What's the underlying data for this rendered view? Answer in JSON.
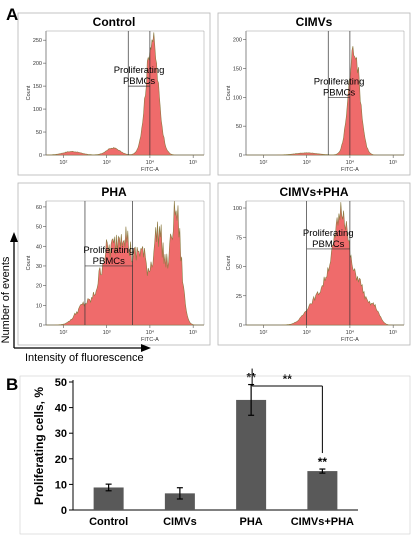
{
  "panel_a": {
    "letter": "A",
    "axis_ylabel": "Number of events",
    "axis_xlabel": "Intensity of fluorescence",
    "fitc_label": "FITC-A",
    "count_label": "Count",
    "gate_label_line1": "Proliferating",
    "gate_label_line2": "PBMCs"
  },
  "panel_b": {
    "letter": "B",
    "significance_mark": "**"
  },
  "colors": {
    "histogram_fill": "#ef6b6b",
    "histogram_edge": "#8b7a40",
    "bar_fill": "#595959",
    "axis": "#000000"
  },
  "chart_data": [
    {
      "type": "area",
      "title": "Control",
      "y_ticks": [
        "0",
        "50",
        "100",
        "150",
        "200",
        "250"
      ],
      "ylim": [
        0,
        270
      ],
      "x_decades": [
        "10²",
        "10³",
        "10⁴",
        "10⁵"
      ],
      "peak_position_log": 4.05,
      "peak_height": 255,
      "gate_decades": [
        3.5,
        4.0
      ],
      "gate_label_level": 150
    },
    {
      "type": "area",
      "title": "CIMVs",
      "y_ticks": [
        "0",
        "50",
        "100",
        "150",
        "200"
      ],
      "ylim": [
        0,
        215
      ],
      "x_decades": [
        "10²",
        "10³",
        "10⁴",
        "10⁵"
      ],
      "peak_position_log": 4.1,
      "peak_height": 185,
      "gate_decades": [
        3.5,
        4.0
      ],
      "gate_label_level": 100
    },
    {
      "type": "area",
      "title": "PHA",
      "y_ticks": [
        "0",
        "10",
        "20",
        "30",
        "40",
        "50",
        "60"
      ],
      "ylim": [
        0,
        63
      ],
      "x_decades": [
        "10²",
        "10³",
        "10⁴",
        "10⁵"
      ],
      "peak_position_log": 4.6,
      "peak_height": 58,
      "gate_decades": [
        2.5,
        3.6
      ],
      "gate_label_level": 30
    },
    {
      "type": "area",
      "title": "CIMVs+PHA",
      "y_ticks": [
        "0",
        "25",
        "50",
        "75",
        "100"
      ],
      "ylim": [
        0,
        106
      ],
      "x_decades": [
        "10²",
        "10³",
        "10⁴",
        "10⁵"
      ],
      "peak_position_log": 3.8,
      "peak_height": 100,
      "gate_decades": [
        3.0,
        4.0
      ],
      "gate_label_level": 65
    },
    {
      "type": "bar",
      "categories": [
        "Control",
        "CIMVs",
        "PHA",
        "CIMVs+PHA"
      ],
      "values": [
        8.8,
        6.5,
        43.0,
        15.2
      ],
      "errors": [
        1.3,
        2.2,
        6.0,
        0.8
      ],
      "significance": [
        "",
        "",
        "**",
        "**"
      ],
      "comparison": {
        "from": "PHA",
        "to": "CIMVs+PHA",
        "label": "**"
      },
      "ylabel": "Proliferating cells, %",
      "ylim": [
        0,
        50
      ],
      "yticks": [
        0,
        10,
        20,
        30,
        40,
        50
      ],
      "grid": false
    }
  ]
}
